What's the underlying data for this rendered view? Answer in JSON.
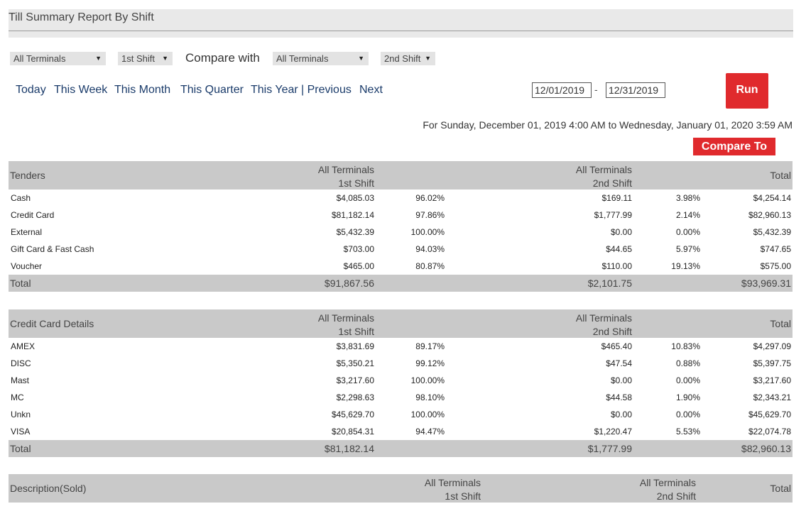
{
  "title": "Till Summary Report By Shift",
  "filters": {
    "terminal_a": "All Terminals",
    "shift_a": "1st Shift",
    "compare_label": "Compare with",
    "terminal_b": "All Terminals",
    "shift_b": "2nd Shift",
    "arrow": "▼"
  },
  "quick_ranges": {
    "today": "Today",
    "this_week": "This Week",
    "this_month": "This Month",
    "this_quarter": "This Quarter",
    "this_year": "This Year",
    "previous": "| Previous",
    "next": "Next"
  },
  "dates": {
    "start": "12/01/2019",
    "separator": "-",
    "end": "12/31/2019"
  },
  "run_label": "Run",
  "range_text": "For Sunday, December 01, 2019 4:00 AM to Wednesday, January 01, 2020 3:59 AM",
  "compare_to_label": "Compare To",
  "col_headers": {
    "group": "All Terminals",
    "shift1": "1st Shift",
    "shift2": "2nd Shift",
    "total": "Total"
  },
  "tenders": {
    "label": "Tenders",
    "rows": [
      {
        "name": "Cash",
        "a1": "$4,085.03",
        "p1": "96.02%",
        "a2": "$169.11",
        "p2": "3.98%",
        "total": "$4,254.14"
      },
      {
        "name": "Credit Card",
        "a1": "$81,182.14",
        "p1": "97.86%",
        "a2": "$1,777.99",
        "p2": "2.14%",
        "total": "$82,960.13"
      },
      {
        "name": "External",
        "a1": "$5,432.39",
        "p1": "100.00%",
        "a2": "$0.00",
        "p2": "0.00%",
        "total": "$5,432.39"
      },
      {
        "name": "Gift Card & Fast Cash",
        "a1": "$703.00",
        "p1": "94.03%",
        "a2": "$44.65",
        "p2": "5.97%",
        "total": "$747.65"
      },
      {
        "name": "Voucher",
        "a1": "$465.00",
        "p1": "80.87%",
        "a2": "$110.00",
        "p2": "19.13%",
        "total": "$575.00"
      }
    ],
    "total": {
      "name": "Total",
      "a1": "$91,867.56",
      "a2": "$2,101.75",
      "total": "$93,969.31"
    }
  },
  "credit": {
    "label": "Credit Card Details",
    "rows": [
      {
        "name": "AMEX",
        "a1": "$3,831.69",
        "p1": "89.17%",
        "a2": "$465.40",
        "p2": "10.83%",
        "total": "$4,297.09"
      },
      {
        "name": "DISC",
        "a1": "$5,350.21",
        "p1": "99.12%",
        "a2": "$47.54",
        "p2": "0.88%",
        "total": "$5,397.75"
      },
      {
        "name": "Mast",
        "a1": "$3,217.60",
        "p1": "100.00%",
        "a2": "$0.00",
        "p2": "0.00%",
        "total": "$3,217.60"
      },
      {
        "name": "MC",
        "a1": "$2,298.63",
        "p1": "98.10%",
        "a2": "$44.58",
        "p2": "1.90%",
        "total": "$2,343.21"
      },
      {
        "name": "Unkn",
        "a1": "$45,629.70",
        "p1": "100.00%",
        "a2": "$0.00",
        "p2": "0.00%",
        "total": "$45,629.70"
      },
      {
        "name": "VISA",
        "a1": "$20,854.31",
        "p1": "94.47%",
        "a2": "$1,220.47",
        "p2": "5.53%",
        "total": "$22,074.78"
      }
    ],
    "total": {
      "name": "Total",
      "a1": "$81,182.14",
      "a2": "$1,777.99",
      "total": "$82,960.13"
    }
  },
  "sold": {
    "label": "Description(Sold)"
  }
}
